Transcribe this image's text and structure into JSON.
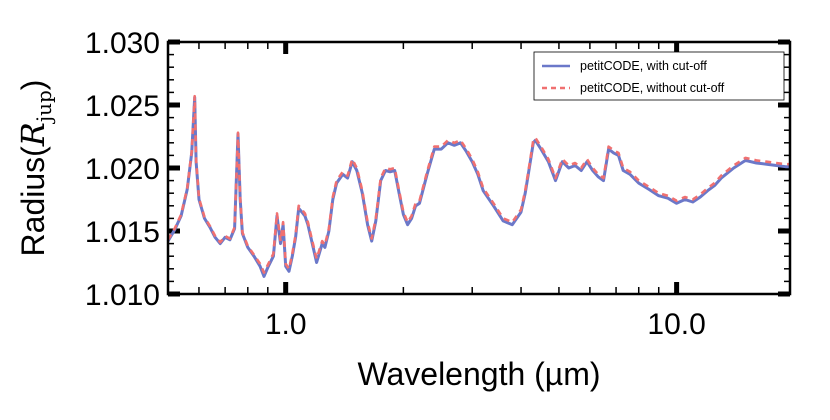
{
  "chart_data": {
    "type": "line",
    "title": "",
    "xlabel": "Wavelength (µm)",
    "ylabel_prefix": "Radius(",
    "ylabel_symbol": "R",
    "ylabel_subscript": "jup",
    "ylabel_suffix": ")",
    "xscale": "log",
    "xlim": [
      0.5,
      19.5
    ],
    "ylim": [
      1.01,
      1.03
    ],
    "x_tick_labels": [
      {
        "value": 1.0,
        "label": "1.0"
      },
      {
        "value": 10.0,
        "label": "10.0"
      }
    ],
    "y_tick_labels": [
      {
        "value": 1.01,
        "label": "1.010"
      },
      {
        "value": 1.015,
        "label": "1.015"
      },
      {
        "value": 1.02,
        "label": "1.020"
      },
      {
        "value": 1.025,
        "label": "1.025"
      },
      {
        "value": 1.03,
        "label": "1.030"
      }
    ],
    "legend_position": "top-right",
    "series": [
      {
        "name": "petitCODE, with cut-off",
        "color": "#6b78c9",
        "style": "solid",
        "x": [
          0.5,
          0.52,
          0.54,
          0.56,
          0.575,
          0.585,
          0.59,
          0.6,
          0.62,
          0.64,
          0.66,
          0.68,
          0.7,
          0.72,
          0.74,
          0.755,
          0.765,
          0.775,
          0.8,
          0.83,
          0.86,
          0.88,
          0.9,
          0.93,
          0.95,
          0.97,
          0.985,
          1.0,
          1.02,
          1.04,
          1.06,
          1.08,
          1.1,
          1.12,
          1.14,
          1.17,
          1.2,
          1.24,
          1.26,
          1.29,
          1.32,
          1.35,
          1.4,
          1.44,
          1.48,
          1.52,
          1.57,
          1.62,
          1.66,
          1.7,
          1.75,
          1.8,
          1.85,
          1.9,
          1.95,
          2.0,
          2.05,
          2.1,
          2.15,
          2.2,
          2.3,
          2.4,
          2.5,
          2.6,
          2.7,
          2.8,
          2.9,
          3.0,
          3.1,
          3.2,
          3.4,
          3.6,
          3.8,
          4.0,
          4.1,
          4.2,
          4.3,
          4.35,
          4.5,
          4.7,
          4.9,
          5.1,
          5.3,
          5.5,
          5.7,
          5.9,
          6.1,
          6.3,
          6.5,
          6.7,
          6.9,
          7.1,
          7.3,
          7.6,
          8.0,
          8.5,
          9.0,
          9.5,
          10.0,
          10.5,
          11.0,
          11.5,
          12.0,
          12.5,
          13.0,
          14.0,
          15.0,
          16.0,
          17.0,
          18.0,
          19.0,
          19.5
        ],
        "y": [
          1.0142,
          1.0151,
          1.0162,
          1.0183,
          1.0212,
          1.0256,
          1.0205,
          1.0175,
          1.016,
          1.0153,
          1.0145,
          1.014,
          1.0145,
          1.0143,
          1.0152,
          1.0227,
          1.0175,
          1.0148,
          1.0137,
          1.013,
          1.0122,
          1.0114,
          1.0121,
          1.013,
          1.0162,
          1.014,
          1.0155,
          1.0122,
          1.0118,
          1.013,
          1.0145,
          1.0168,
          1.0165,
          1.0162,
          1.0155,
          1.014,
          1.0125,
          1.014,
          1.0137,
          1.015,
          1.0175,
          1.0188,
          1.0195,
          1.0192,
          1.0205,
          1.0198,
          1.018,
          1.0155,
          1.0142,
          1.0158,
          1.019,
          1.0198,
          1.0197,
          1.0198,
          1.018,
          1.0163,
          1.0155,
          1.016,
          1.017,
          1.0172,
          1.0195,
          1.0215,
          1.0215,
          1.022,
          1.0218,
          1.022,
          1.0213,
          1.0205,
          1.0195,
          1.0182,
          1.017,
          1.0158,
          1.0155,
          1.0165,
          1.018,
          1.02,
          1.022,
          1.0222,
          1.0215,
          1.0205,
          1.019,
          1.0205,
          1.02,
          1.0202,
          1.0198,
          1.0205,
          1.0198,
          1.0193,
          1.019,
          1.0215,
          1.0212,
          1.021,
          1.0198,
          1.0195,
          1.0188,
          1.0183,
          1.0178,
          1.0176,
          1.0172,
          1.0175,
          1.0173,
          1.0177,
          1.0182,
          1.0186,
          1.0192,
          1.02,
          1.0206,
          1.0204,
          1.0203,
          1.0202,
          1.0201,
          1.0201
        ]
      },
      {
        "name": "petitCODE, without cut-off",
        "color": "#f07070",
        "style": "dashed",
        "x": [
          0.5,
          0.52,
          0.54,
          0.56,
          0.575,
          0.585,
          0.59,
          0.6,
          0.62,
          0.64,
          0.66,
          0.68,
          0.7,
          0.72,
          0.74,
          0.755,
          0.765,
          0.775,
          0.8,
          0.83,
          0.86,
          0.88,
          0.9,
          0.93,
          0.95,
          0.97,
          0.985,
          1.0,
          1.02,
          1.04,
          1.06,
          1.08,
          1.1,
          1.12,
          1.14,
          1.17,
          1.2,
          1.24,
          1.26,
          1.29,
          1.32,
          1.35,
          1.4,
          1.44,
          1.48,
          1.52,
          1.57,
          1.62,
          1.66,
          1.7,
          1.75,
          1.8,
          1.85,
          1.9,
          1.95,
          2.0,
          2.05,
          2.1,
          2.15,
          2.2,
          2.3,
          2.4,
          2.5,
          2.6,
          2.7,
          2.8,
          2.9,
          3.0,
          3.1,
          3.2,
          3.4,
          3.6,
          3.8,
          4.0,
          4.1,
          4.2,
          4.3,
          4.35,
          4.5,
          4.7,
          4.9,
          5.1,
          5.3,
          5.5,
          5.7,
          5.9,
          6.1,
          6.3,
          6.5,
          6.7,
          6.9,
          7.1,
          7.3,
          7.6,
          8.0,
          8.5,
          9.0,
          9.5,
          10.0,
          10.5,
          11.0,
          11.5,
          12.0,
          12.5,
          13.0,
          14.0,
          15.0,
          16.0,
          17.0,
          18.0,
          19.0,
          19.5
        ],
        "y": [
          1.0143,
          1.0152,
          1.0163,
          1.0184,
          1.0213,
          1.0257,
          1.0206,
          1.0176,
          1.0161,
          1.0154,
          1.0146,
          1.0141,
          1.0146,
          1.0144,
          1.0153,
          1.0228,
          1.0176,
          1.0149,
          1.0138,
          1.0131,
          1.0124,
          1.0117,
          1.0123,
          1.0132,
          1.0164,
          1.0142,
          1.0157,
          1.0124,
          1.012,
          1.0132,
          1.0147,
          1.017,
          1.0167,
          1.0164,
          1.0157,
          1.0142,
          1.0128,
          1.0142,
          1.0139,
          1.0152,
          1.0177,
          1.019,
          1.0197,
          1.0194,
          1.0207,
          1.02,
          1.0182,
          1.0157,
          1.0144,
          1.016,
          1.0192,
          1.02,
          1.0199,
          1.02,
          1.0182,
          1.0165,
          1.0157,
          1.0162,
          1.0172,
          1.0174,
          1.0197,
          1.0217,
          1.0217,
          1.0222,
          1.022,
          1.0222,
          1.0215,
          1.0207,
          1.0197,
          1.0184,
          1.0172,
          1.016,
          1.0157,
          1.0167,
          1.0182,
          1.0202,
          1.0222,
          1.0224,
          1.0217,
          1.0207,
          1.0192,
          1.0207,
          1.0202,
          1.0204,
          1.02,
          1.0207,
          1.02,
          1.0195,
          1.0192,
          1.0217,
          1.0214,
          1.0212,
          1.02,
          1.0197,
          1.019,
          1.0185,
          1.018,
          1.0178,
          1.0174,
          1.0177,
          1.0175,
          1.0179,
          1.0184,
          1.0188,
          1.0194,
          1.0202,
          1.0208,
          1.0206,
          1.0205,
          1.0204,
          1.0203,
          1.0203
        ]
      }
    ]
  }
}
